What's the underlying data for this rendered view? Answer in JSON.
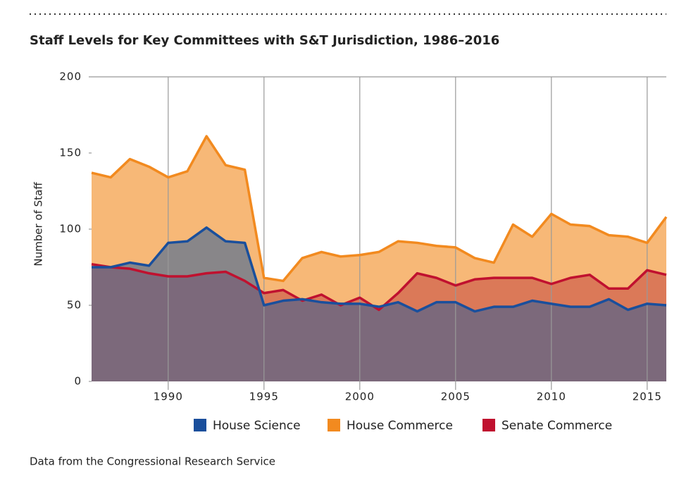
{
  "chart_data": {
    "type": "area",
    "title": "Staff Levels for Key Committees with S&T Jurisdiction, 1986–2016",
    "y_label": "Number of Staff",
    "source": "Data from the Congressional Research Service",
    "x": [
      1986,
      1987,
      1988,
      1989,
      1990,
      1991,
      1992,
      1993,
      1994,
      1995,
      1996,
      1997,
      1998,
      1999,
      2000,
      2001,
      2002,
      2003,
      2004,
      2005,
      2006,
      2007,
      2008,
      2009,
      2010,
      2011,
      2012,
      2013,
      2014,
      2015,
      2016
    ],
    "xlim": [
      1986,
      2016
    ],
    "xticks": [
      1990,
      1995,
      2000,
      2005,
      2010,
      2015
    ],
    "ylim": [
      0,
      200
    ],
    "yticks": [
      0,
      50,
      100,
      150,
      200
    ],
    "grid": "x",
    "legend": "bottom",
    "series": [
      {
        "name": "House Commerce",
        "color": "#f28a1f",
        "fill": "#f7b877",
        "values": [
          137,
          134,
          146,
          141,
          134,
          138,
          161,
          142,
          139,
          68,
          66,
          81,
          85,
          82,
          83,
          85,
          92,
          91,
          89,
          88,
          81,
          78,
          103,
          95,
          110,
          103,
          102,
          96,
          95,
          91,
          108
        ]
      },
      {
        "name": "Senate Commerce",
        "color": "#c0112f",
        "fill": "#c4453f",
        "values": [
          77,
          75,
          74,
          71,
          69,
          69,
          71,
          72,
          66,
          58,
          60,
          53,
          57,
          50,
          55,
          47,
          58,
          71,
          68,
          63,
          67,
          68,
          68,
          68,
          64,
          68,
          70,
          61,
          61,
          73,
          70
        ]
      },
      {
        "name": "House Science",
        "color": "#1a4f9c",
        "fill": "#2e5c99",
        "values": [
          75,
          75,
          78,
          76,
          91,
          92,
          101,
          92,
          91,
          50,
          53,
          54,
          52,
          51,
          51,
          49,
          52,
          46,
          52,
          52,
          46,
          49,
          49,
          53,
          51,
          49,
          49,
          54,
          47,
          51,
          50
        ]
      }
    ],
    "legend_order": [
      2,
      0,
      1
    ]
  }
}
